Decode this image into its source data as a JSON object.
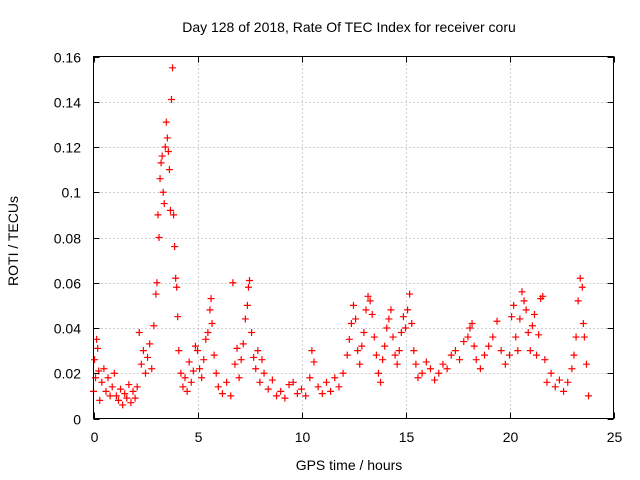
{
  "chart_data": {
    "type": "scatter",
    "title": "Day 128 of 2018, Rate Of TEC Index for receiver coru",
    "xlabel": "GPS time / hours",
    "ylabel": "ROTI / TECUs",
    "xlim": [
      0,
      25
    ],
    "ylim": [
      0,
      0.16
    ],
    "xticks": [
      0,
      5,
      10,
      15,
      20,
      25
    ],
    "xtick_labels": [
      "0",
      "5",
      "10",
      "15",
      "20",
      "25"
    ],
    "yticks": [
      0,
      0.02,
      0.04,
      0.06,
      0.08,
      0.1,
      0.12,
      0.14,
      0.16
    ],
    "ytick_labels": [
      "0",
      "0.02",
      "0.04",
      "0.06",
      "0.08",
      "0.1",
      "0.12",
      "0.14",
      "0.16"
    ],
    "grid": true,
    "marker": "+",
    "color": "#ff0000",
    "series": [
      {
        "name": "ROTI",
        "points": [
          [
            0.0,
            0.012
          ],
          [
            0.05,
            0.026
          ],
          [
            0.1,
            0.018
          ],
          [
            0.15,
            0.035
          ],
          [
            0.2,
            0.031
          ],
          [
            0.25,
            0.021
          ],
          [
            0.3,
            0.008
          ],
          [
            0.4,
            0.016
          ],
          [
            0.5,
            0.022
          ],
          [
            0.6,
            0.012
          ],
          [
            0.7,
            0.018
          ],
          [
            0.8,
            0.01
          ],
          [
            0.9,
            0.014
          ],
          [
            1.0,
            0.02
          ],
          [
            1.1,
            0.01
          ],
          [
            1.2,
            0.008
          ],
          [
            1.3,
            0.013
          ],
          [
            1.4,
            0.006
          ],
          [
            1.5,
            0.011
          ],
          [
            1.6,
            0.009
          ],
          [
            1.7,
            0.015
          ],
          [
            1.8,
            0.007
          ],
          [
            1.9,
            0.012
          ],
          [
            2.0,
            0.009
          ],
          [
            2.1,
            0.014
          ],
          [
            2.2,
            0.038
          ],
          [
            2.3,
            0.024
          ],
          [
            2.4,
            0.03
          ],
          [
            2.5,
            0.02
          ],
          [
            2.6,
            0.027
          ],
          [
            2.7,
            0.033
          ],
          [
            2.8,
            0.022
          ],
          [
            2.9,
            0.041
          ],
          [
            3.0,
            0.055
          ],
          [
            3.05,
            0.06
          ],
          [
            3.1,
            0.09
          ],
          [
            3.15,
            0.08
          ],
          [
            3.2,
            0.106
          ],
          [
            3.25,
            0.113
          ],
          [
            3.3,
            0.116
          ],
          [
            3.35,
            0.1
          ],
          [
            3.4,
            0.095
          ],
          [
            3.45,
            0.12
          ],
          [
            3.5,
            0.131
          ],
          [
            3.55,
            0.124
          ],
          [
            3.6,
            0.118
          ],
          [
            3.65,
            0.11
          ],
          [
            3.7,
            0.092
          ],
          [
            3.75,
            0.141
          ],
          [
            3.8,
            0.155
          ],
          [
            3.85,
            0.09
          ],
          [
            3.9,
            0.076
          ],
          [
            3.95,
            0.062
          ],
          [
            4.0,
            0.058
          ],
          [
            4.05,
            0.045
          ],
          [
            4.1,
            0.03
          ],
          [
            4.2,
            0.02
          ],
          [
            4.3,
            0.014
          ],
          [
            4.4,
            0.018
          ],
          [
            4.5,
            0.012
          ],
          [
            4.6,
            0.025
          ],
          [
            4.7,
            0.016
          ],
          [
            4.8,
            0.021
          ],
          [
            4.9,
            0.032
          ],
          [
            5.0,
            0.03
          ],
          [
            5.1,
            0.022
          ],
          [
            5.2,
            0.018
          ],
          [
            5.3,
            0.026
          ],
          [
            5.4,
            0.035
          ],
          [
            5.5,
            0.038
          ],
          [
            5.6,
            0.048
          ],
          [
            5.65,
            0.053
          ],
          [
            5.7,
            0.042
          ],
          [
            5.8,
            0.028
          ],
          [
            5.9,
            0.02
          ],
          [
            6.0,
            0.014
          ],
          [
            6.2,
            0.011
          ],
          [
            6.4,
            0.016
          ],
          [
            6.6,
            0.01
          ],
          [
            6.7,
            0.06
          ],
          [
            6.8,
            0.024
          ],
          [
            6.9,
            0.031
          ],
          [
            7.0,
            0.018
          ],
          [
            7.1,
            0.026
          ],
          [
            7.2,
            0.033
          ],
          [
            7.3,
            0.044
          ],
          [
            7.4,
            0.05
          ],
          [
            7.45,
            0.058
          ],
          [
            7.5,
            0.061
          ],
          [
            7.6,
            0.038
          ],
          [
            7.7,
            0.027
          ],
          [
            7.8,
            0.022
          ],
          [
            7.9,
            0.03
          ],
          [
            8.0,
            0.016
          ],
          [
            8.1,
            0.026
          ],
          [
            8.2,
            0.02
          ],
          [
            8.4,
            0.013
          ],
          [
            8.6,
            0.017
          ],
          [
            8.8,
            0.01
          ],
          [
            9.0,
            0.012
          ],
          [
            9.2,
            0.009
          ],
          [
            9.4,
            0.015
          ],
          [
            9.6,
            0.016
          ],
          [
            9.8,
            0.011
          ],
          [
            10.0,
            0.013
          ],
          [
            10.2,
            0.01
          ],
          [
            10.4,
            0.018
          ],
          [
            10.5,
            0.03
          ],
          [
            10.6,
            0.025
          ],
          [
            10.8,
            0.014
          ],
          [
            11.0,
            0.011
          ],
          [
            11.2,
            0.016
          ],
          [
            11.4,
            0.012
          ],
          [
            11.6,
            0.018
          ],
          [
            11.8,
            0.014
          ],
          [
            12.0,
            0.02
          ],
          [
            12.2,
            0.028
          ],
          [
            12.3,
            0.035
          ],
          [
            12.4,
            0.042
          ],
          [
            12.5,
            0.05
          ],
          [
            12.6,
            0.044
          ],
          [
            12.7,
            0.03
          ],
          [
            12.8,
            0.024
          ],
          [
            12.9,
            0.032
          ],
          [
            13.0,
            0.038
          ],
          [
            13.1,
            0.048
          ],
          [
            13.2,
            0.054
          ],
          [
            13.3,
            0.052
          ],
          [
            13.4,
            0.046
          ],
          [
            13.5,
            0.036
          ],
          [
            13.6,
            0.028
          ],
          [
            13.7,
            0.02
          ],
          [
            13.8,
            0.016
          ],
          [
            13.9,
            0.026
          ],
          [
            14.0,
            0.032
          ],
          [
            14.1,
            0.04
          ],
          [
            14.2,
            0.044
          ],
          [
            14.3,
            0.048
          ],
          [
            14.4,
            0.036
          ],
          [
            14.5,
            0.028
          ],
          [
            14.6,
            0.024
          ],
          [
            14.7,
            0.03
          ],
          [
            14.8,
            0.038
          ],
          [
            14.9,
            0.045
          ],
          [
            15.0,
            0.04
          ],
          [
            15.1,
            0.048
          ],
          [
            15.2,
            0.055
          ],
          [
            15.3,
            0.042
          ],
          [
            15.4,
            0.03
          ],
          [
            15.5,
            0.024
          ],
          [
            15.6,
            0.018
          ],
          [
            15.8,
            0.02
          ],
          [
            16.0,
            0.025
          ],
          [
            16.2,
            0.022
          ],
          [
            16.4,
            0.017
          ],
          [
            16.6,
            0.02
          ],
          [
            16.8,
            0.024
          ],
          [
            17.0,
            0.022
          ],
          [
            17.2,
            0.028
          ],
          [
            17.4,
            0.03
          ],
          [
            17.6,
            0.026
          ],
          [
            17.8,
            0.034
          ],
          [
            18.0,
            0.036
          ],
          [
            18.1,
            0.04
          ],
          [
            18.2,
            0.042
          ],
          [
            18.3,
            0.032
          ],
          [
            18.4,
            0.026
          ],
          [
            18.6,
            0.022
          ],
          [
            18.8,
            0.028
          ],
          [
            19.0,
            0.032
          ],
          [
            19.2,
            0.036
          ],
          [
            19.4,
            0.043
          ],
          [
            19.6,
            0.03
          ],
          [
            19.8,
            0.024
          ],
          [
            20.0,
            0.028
          ],
          [
            20.1,
            0.045
          ],
          [
            20.2,
            0.05
          ],
          [
            20.3,
            0.036
          ],
          [
            20.4,
            0.03
          ],
          [
            20.5,
            0.044
          ],
          [
            20.6,
            0.056
          ],
          [
            20.7,
            0.052
          ],
          [
            20.8,
            0.048
          ],
          [
            20.9,
            0.038
          ],
          [
            21.0,
            0.03
          ],
          [
            21.1,
            0.041
          ],
          [
            21.2,
            0.046
          ],
          [
            21.3,
            0.028
          ],
          [
            21.4,
            0.037
          ],
          [
            21.5,
            0.053
          ],
          [
            21.6,
            0.054
          ],
          [
            21.7,
            0.026
          ],
          [
            21.8,
            0.016
          ],
          [
            22.0,
            0.02
          ],
          [
            22.2,
            0.014
          ],
          [
            22.4,
            0.017
          ],
          [
            22.6,
            0.012
          ],
          [
            22.8,
            0.016
          ],
          [
            23.0,
            0.022
          ],
          [
            23.1,
            0.028
          ],
          [
            23.2,
            0.036
          ],
          [
            23.3,
            0.052
          ],
          [
            23.4,
            0.062
          ],
          [
            23.5,
            0.058
          ],
          [
            23.55,
            0.042
          ],
          [
            23.6,
            0.036
          ],
          [
            23.7,
            0.024
          ],
          [
            23.8,
            0.01
          ]
        ]
      }
    ]
  }
}
